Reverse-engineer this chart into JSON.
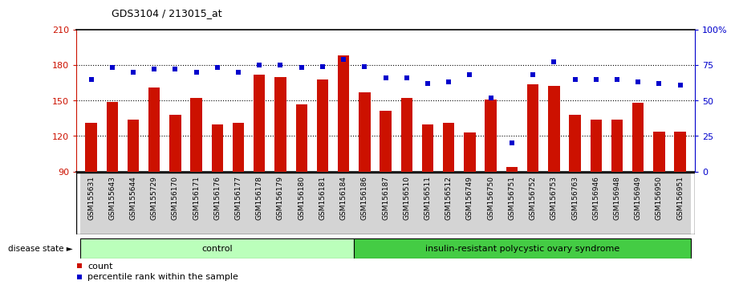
{
  "title": "GDS3104 / 213015_at",
  "samples": [
    "GSM155631",
    "GSM155643",
    "GSM155644",
    "GSM155729",
    "GSM156170",
    "GSM156171",
    "GSM156176",
    "GSM156177",
    "GSM156178",
    "GSM156179",
    "GSM156180",
    "GSM156181",
    "GSM156184",
    "GSM156186",
    "GSM156187",
    "GSM156510",
    "GSM156511",
    "GSM156512",
    "GSM156749",
    "GSM156750",
    "GSM156751",
    "GSM156752",
    "GSM156753",
    "GSM156763",
    "GSM156946",
    "GSM156948",
    "GSM156949",
    "GSM156950",
    "GSM156951"
  ],
  "bar_values": [
    131,
    149,
    134,
    161,
    138,
    152,
    130,
    131,
    172,
    170,
    147,
    168,
    188,
    157,
    141,
    152,
    130,
    131,
    123,
    151,
    94,
    164,
    162,
    138,
    134,
    134,
    148,
    124,
    124
  ],
  "dot_values_pct": [
    65,
    73,
    70,
    72,
    72,
    70,
    73,
    70,
    75,
    75,
    73,
    74,
    79,
    74,
    66,
    66,
    62,
    63,
    68,
    52,
    20,
    68,
    77,
    65,
    65,
    65,
    63,
    62,
    61
  ],
  "control_count": 13,
  "bar_color": "#cc1100",
  "dot_color": "#0000cc",
  "ylim_left": [
    90,
    210
  ],
  "ylim_right": [
    0,
    100
  ],
  "yticks_left": [
    90,
    120,
    150,
    180,
    210
  ],
  "yticks_right": [
    0,
    25,
    50,
    75,
    100
  ],
  "ytick_labels_right": [
    "0",
    "25",
    "50",
    "75",
    "100%"
  ],
  "hline_values": [
    120,
    150,
    180
  ],
  "control_label": "control",
  "disease_label": "insulin-resistant polycystic ovary syndrome",
  "disease_state_label": "disease state",
  "legend_bar_label": "count",
  "legend_dot_label": "percentile rank within the sample",
  "control_color": "#bbffbb",
  "disease_color": "#44cc44",
  "bg_color": "#ffffff"
}
